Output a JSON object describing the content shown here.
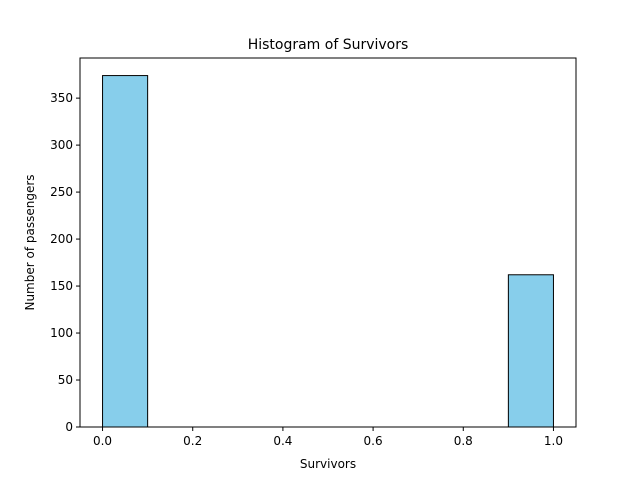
{
  "chart_data": {
    "type": "bar",
    "title": "Histogram of Survivors",
    "xlabel": "Survivors",
    "ylabel": "Number of passengers",
    "bins": [
      {
        "start": 0.0,
        "end": 0.1,
        "count": 374
      },
      {
        "start": 0.1,
        "end": 0.2,
        "count": 0
      },
      {
        "start": 0.2,
        "end": 0.3,
        "count": 0
      },
      {
        "start": 0.3,
        "end": 0.4,
        "count": 0
      },
      {
        "start": 0.4,
        "end": 0.5,
        "count": 0
      },
      {
        "start": 0.5,
        "end": 0.6,
        "count": 0
      },
      {
        "start": 0.6,
        "end": 0.7,
        "count": 0
      },
      {
        "start": 0.7,
        "end": 0.8,
        "count": 0
      },
      {
        "start": 0.8,
        "end": 0.9,
        "count": 0
      },
      {
        "start": 0.9,
        "end": 1.0,
        "count": 162
      }
    ],
    "xlim": [
      -0.05,
      1.05
    ],
    "ylim": [
      0,
      392.7
    ],
    "xticks": [
      0.0,
      0.2,
      0.4,
      0.6,
      0.8,
      1.0
    ],
    "xtick_labels": [
      "0.0",
      "0.2",
      "0.4",
      "0.6",
      "0.8",
      "1.0"
    ],
    "yticks": [
      0,
      50,
      100,
      150,
      200,
      250,
      300,
      350
    ],
    "ytick_labels": [
      "0",
      "50",
      "100",
      "150",
      "200",
      "250",
      "300",
      "350"
    ],
    "grid": false,
    "legend": "none",
    "bar_color": "#87CEEB",
    "edge_color": "#000000"
  }
}
